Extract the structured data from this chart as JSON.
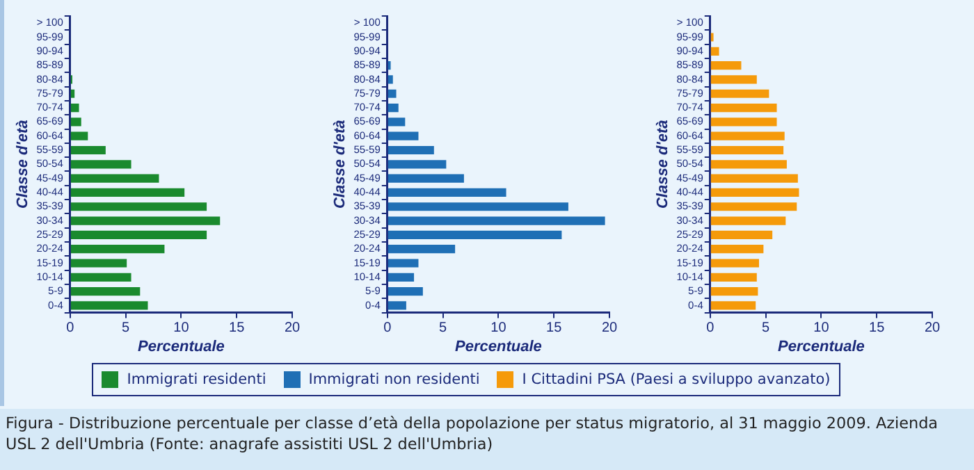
{
  "chart_data": [
    {
      "type": "bar",
      "orientation": "horizontal",
      "ylabel": "Classe d'età",
      "xlabel": "Percentuale",
      "legend": "bottom",
      "grid": false,
      "categories": [
        "> 100",
        "95-99",
        "90-94",
        "85-89",
        "80-84",
        "75-79",
        "70-74",
        "65-69",
        "60-64",
        "55-59",
        "50-54",
        "45-49",
        "40-44",
        "35-39",
        "30-34",
        "25-29",
        "20-24",
        "15-19",
        "10-14",
        "5-9",
        "0-4"
      ],
      "xlim": [
        0,
        20
      ],
      "xticks": [
        0,
        5,
        10,
        15,
        20
      ],
      "series": [
        {
          "name": "Immigrati residenti",
          "color": "#1a8a2e",
          "values": [
            0,
            0,
            0,
            null,
            0.2,
            0.4,
            0.8,
            1.0,
            1.6,
            3.2,
            5.5,
            8.0,
            10.3,
            12.3,
            13.5,
            12.3,
            8.5,
            5.1,
            5.5,
            6.3,
            7.0
          ]
        }
      ]
    },
    {
      "type": "bar",
      "orientation": "horizontal",
      "ylabel": "Classe d'età",
      "xlabel": "Percentuale",
      "legend": "bottom",
      "grid": false,
      "categories": [
        "> 100",
        "95-99",
        "90-94",
        "85-89",
        "80-84",
        "75-79",
        "70-74",
        "65-69",
        "60-64",
        "55-59",
        "50-54",
        "45-49",
        "40-44",
        "35-39",
        "30-34",
        "25-29",
        "20-24",
        "15-19",
        "10-14",
        "5-9",
        "0-4"
      ],
      "xlim": [
        0,
        20
      ],
      "xticks": [
        0,
        5,
        10,
        15,
        20
      ],
      "series": [
        {
          "name": "Immigrati non residenti",
          "color": "#1f6fb5",
          "values": [
            0,
            0,
            null,
            0.3,
            0.5,
            0.8,
            1.0,
            1.6,
            2.8,
            4.2,
            5.3,
            6.9,
            10.7,
            16.3,
            19.6,
            15.7,
            6.1,
            2.8,
            2.4,
            3.2,
            1.7
          ]
        }
      ]
    },
    {
      "type": "bar",
      "orientation": "horizontal",
      "ylabel": "Classe d'età",
      "xlabel": "Percentuale",
      "legend": "bottom",
      "grid": false,
      "categories": [
        "> 100",
        "95-99",
        "90-94",
        "85-89",
        "80-84",
        "75-79",
        "70-74",
        "65-69",
        "60-64",
        "55-59",
        "50-54",
        "45-49",
        "40-44",
        "35-39",
        "30-34",
        "25-29",
        "20-24",
        "15-19",
        "10-14",
        "5-9",
        "0-4"
      ],
      "xlim": [
        0,
        20
      ],
      "xticks": [
        0,
        5,
        10,
        15,
        20
      ],
      "series": [
        {
          "name": "I Cittadini PSA (Paesi a sviluppo avanzato)",
          "color": "#f59a0a",
          "values": [
            0,
            0.3,
            0.8,
            2.8,
            4.2,
            5.3,
            6.0,
            6.0,
            6.7,
            6.6,
            6.9,
            7.9,
            8.0,
            7.8,
            6.8,
            5.6,
            4.8,
            4.4,
            4.2,
            4.3,
            4.1
          ]
        }
      ],
      "annotations": [
        "Figura - Distribuzione percentuale per classe d’età della popolazione per status migratorio, al 31 maggio 2009. Azienda USL 2 dell'Umbria (Fonte: anagrafe assistiti USL 2 dell'Umbria)"
      ]
    }
  ]
}
